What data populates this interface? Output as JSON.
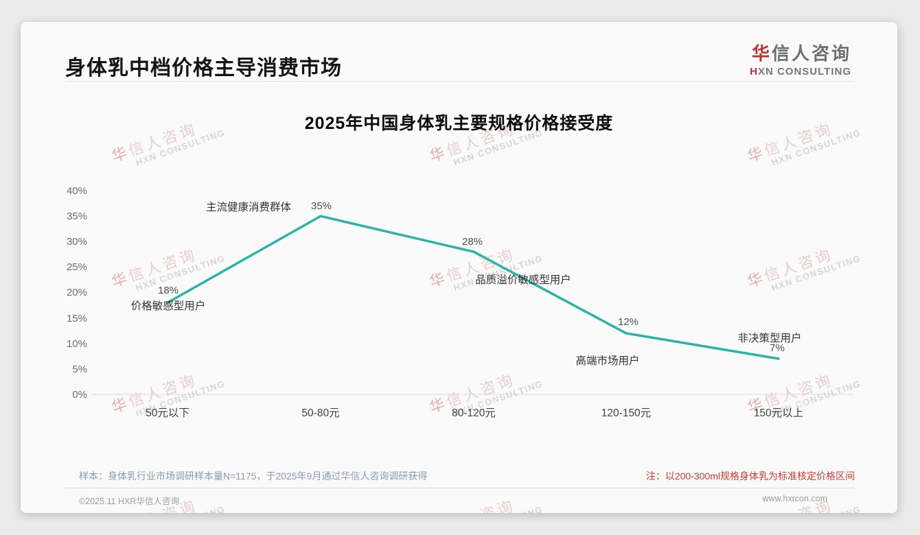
{
  "page": {
    "title": "身体乳中档价格主导消费市场"
  },
  "logo": {
    "brand_first": "华",
    "brand_rest": "信人咨询",
    "sub_first": "H",
    "sub_rest": "XN CONSULTING"
  },
  "watermark": {
    "cn_first": "华",
    "cn_rest": "信人咨询",
    "en": "HXN CONSULTING"
  },
  "chart_data": {
    "type": "line",
    "title": "2025年中国身体乳主要规格价格接受度",
    "categories": [
      "50元以下",
      "50-80元",
      "80-120元",
      "120-150元",
      "150元以上"
    ],
    "values": [
      18,
      35,
      28,
      12,
      7
    ],
    "value_labels": [
      "18%",
      "35%",
      "28%",
      "12%",
      "7%"
    ],
    "point_annotations": [
      "价格敏感型用户",
      "主流健康消费群体",
      "品质溢价敏感型用户",
      "高端市场用户",
      "非决策型用户"
    ],
    "xlabel": "",
    "ylabel": "",
    "ylim": [
      0,
      40
    ],
    "y_ticks": [
      "40%",
      "35%",
      "30%",
      "25%",
      "20%",
      "15%",
      "10%",
      "5%",
      "0%"
    ],
    "line_color": "#2bb3a6",
    "grid": false,
    "legend": "none"
  },
  "notes": {
    "sample": "样本：身体乳行业市场调研样本量N=1175，于2025年9月通过华信人咨询调研获得",
    "standard": "注：以200-300ml规格身体乳为标准核定价格区间"
  },
  "footer": {
    "copyright": "©2025.11 HXR华信人咨询",
    "website": "www.hxrcon.com"
  }
}
